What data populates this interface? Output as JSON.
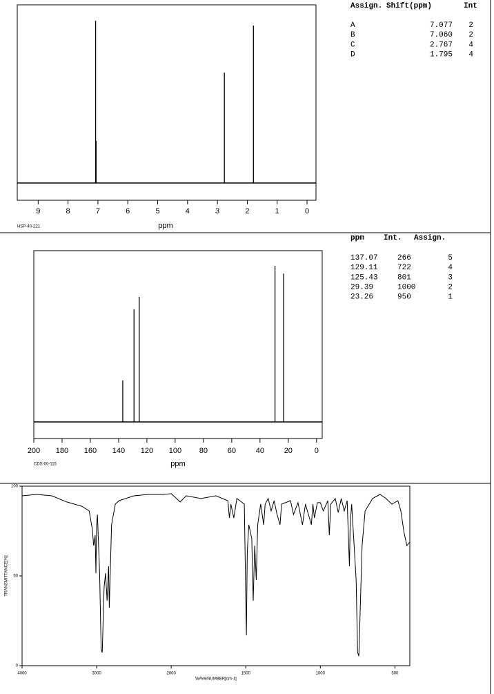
{
  "chart_data": [
    {
      "type": "spectrum",
      "xlabel": "ppm",
      "code": "HSP-40-221",
      "columns": [
        "Assign.",
        "Shift(ppm)",
        "Int"
      ],
      "assign": [
        "A",
        "B",
        "C",
        "D"
      ],
      "x": [
        7.077,
        7.06,
        2.767,
        1.795
      ],
      "x_labels": [
        "7.077",
        "7.060",
        "2.767",
        "1.795"
      ],
      "int": [
        2,
        2,
        4,
        4
      ],
      "values": [
        100,
        26,
        68,
        97
      ],
      "xlim": [
        9.7,
        -0.3
      ],
      "xticks": [
        9,
        8,
        7,
        6,
        5,
        4,
        3,
        2,
        1,
        0
      ],
      "color": "#000000"
    },
    {
      "type": "spectrum",
      "xlabel": "ppm",
      "code": "CDS-00-115",
      "columns": [
        "ppm",
        "Int.",
        "Assign."
      ],
      "x": [
        137.07,
        129.11,
        125.43,
        29.39,
        23.26
      ],
      "values": [
        266,
        722,
        801,
        1000,
        950
      ],
      "assign": [
        5,
        4,
        3,
        2,
        1
      ],
      "xlim": [
        200,
        -4
      ],
      "xticks": [
        200,
        180,
        160,
        140,
        120,
        100,
        80,
        60,
        40,
        20,
        0
      ],
      "color": "#000000"
    },
    {
      "type": "line",
      "xlabel": "WAVENUMBER[cm-1]",
      "ylabel": "TRANSMITTANCE[%]",
      "xscale": "piecewise",
      "x": [
        4000,
        3800,
        3600,
        3400,
        3200,
        3100,
        3060,
        3040,
        3020,
        3010,
        3000,
        2990,
        2960,
        2940,
        2925,
        2900,
        2880,
        2860,
        2840,
        2830,
        2800,
        2750,
        2700,
        2500,
        2300,
        2100,
        2000,
        1940,
        1900,
        1800,
        1700,
        1620,
        1610,
        1600,
        1580,
        1560,
        1510,
        1496,
        1490,
        1480,
        1460,
        1450,
        1440,
        1430,
        1420,
        1400,
        1380,
        1370,
        1350,
        1330,
        1310,
        1290,
        1270,
        1260,
        1200,
        1180,
        1150,
        1120,
        1100,
        1060,
        1050,
        1040,
        1020,
        1000,
        980,
        950,
        940,
        930,
        900,
        880,
        860,
        840,
        820,
        810,
        805,
        800,
        790,
        760,
        750,
        742,
        735,
        720,
        700,
        650,
        600,
        560,
        520,
        480,
        460,
        440,
        420,
        400
      ],
      "values": [
        94.6,
        95.4,
        94.6,
        91.2,
        88.8,
        86.2,
        76.5,
        66.9,
        72.7,
        51.5,
        78.5,
        84.2,
        51.5,
        9.2,
        7.3,
        43.8,
        51.5,
        36.2,
        55.4,
        32.3,
        78.5,
        90,
        91.9,
        94.6,
        95.4,
        95.4,
        95.8,
        91.2,
        94.6,
        93.1,
        94.6,
        91.9,
        82.3,
        90,
        82.3,
        93.1,
        90,
        16.9,
        63.1,
        78.5,
        70.8,
        36.2,
        66.9,
        47.7,
        78.5,
        90,
        78.5,
        90,
        93.1,
        86.2,
        91.9,
        84.2,
        78.5,
        90,
        91.9,
        84.2,
        90.8,
        78.5,
        90,
        78.5,
        90,
        82.3,
        90.8,
        90.8,
        86.2,
        91.9,
        72.7,
        90,
        93.1,
        85.4,
        93.1,
        86.2,
        91.9,
        66.9,
        55.4,
        78.5,
        90,
        47.7,
        7.3,
        5.4,
        24.6,
        66.9,
        86.2,
        93.1,
        95.4,
        93.1,
        90,
        91.9,
        86.2,
        74.6,
        66.9,
        68.8
      ],
      "xlim": [
        4000,
        400
      ],
      "xticks": [
        4000,
        3000,
        2000,
        1500,
        1000,
        500
      ],
      "ylim": [
        0,
        100
      ],
      "yticks": [
        0,
        50,
        100
      ],
      "color": "#000000"
    }
  ]
}
